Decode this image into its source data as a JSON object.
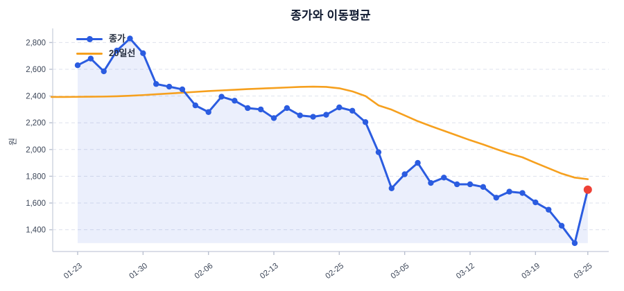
{
  "title": "종가와 이동평균",
  "y_axis_label": "원",
  "chart_data": {
    "type": "line",
    "title": "종가와 이동평균",
    "ylabel": "원",
    "grid": "horizontal-dashed",
    "legend_position": "upper-left",
    "x_tick_labels": [
      "01-23",
      "01-30",
      "02-06",
      "02-13",
      "02-25",
      "03-05",
      "03-12",
      "03-19",
      "03-25"
    ],
    "x_tick_indices": [
      0,
      5,
      10,
      15,
      20,
      25,
      30,
      35,
      39
    ],
    "y_ticks": [
      1400,
      1600,
      1800,
      2000,
      2200,
      2400,
      2600,
      2800
    ],
    "y_tick_format": "thousands-comma",
    "ylim": [
      1215,
      2900
    ],
    "series": [
      {
        "name": "종가",
        "type": "line+markers",
        "color": "#2B5CE0",
        "area_fill": true,
        "area_color": "rgba(58,98,224,0.10)",
        "x_start": 0,
        "values": [
          2630,
          2680,
          2585,
          2740,
          2830,
          2720,
          2490,
          2470,
          2450,
          2330,
          2280,
          2395,
          2365,
          2310,
          2300,
          2235,
          2310,
          2255,
          2245,
          2260,
          2315,
          2290,
          2205,
          1980,
          1710,
          1815,
          1900,
          1750,
          1790,
          1740,
          1740,
          1720,
          1640,
          1685,
          1675,
          1605,
          1550,
          1430,
          1300,
          1700
        ],
        "last_point": {
          "value": 1700,
          "highlight_color": "#EE4136"
        }
      },
      {
        "name": "20일선",
        "type": "line",
        "color": "#F6A01E",
        "x_start": -2,
        "values": [
          2393,
          2393,
          2394,
          2395,
          2396,
          2398,
          2402,
          2407,
          2413,
          2419,
          2425,
          2431,
          2437,
          2442,
          2447,
          2452,
          2456,
          2460,
          2464,
          2468,
          2470,
          2468,
          2458,
          2435,
          2400,
          2330,
          2298,
          2255,
          2212,
          2175,
          2140,
          2105,
          2070,
          2038,
          2003,
          1970,
          1942,
          1900,
          1860,
          1820,
          1790,
          1778
        ]
      }
    ]
  }
}
